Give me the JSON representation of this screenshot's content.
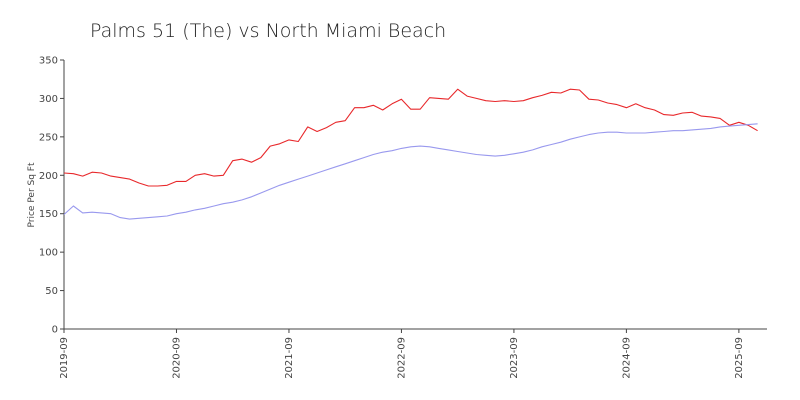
{
  "chart_data": {
    "type": "line",
    "title": "Palms 51 (The) vs North Miami Beach",
    "xlabel": "",
    "ylabel": "Price Per Sq Ft",
    "ylim": [
      0,
      350
    ],
    "yticks": [
      0,
      50,
      100,
      150,
      200,
      250,
      300,
      350
    ],
    "xlim": [
      "2019-09",
      "2025-12"
    ],
    "xticks": [
      "2019-09",
      "2020-09",
      "2021-09",
      "2022-09",
      "2023-09",
      "2024-09",
      "2025-09"
    ],
    "grid": false,
    "legend": "none",
    "start_month": "2019-09",
    "series": [
      {
        "color": "#e8282b",
        "values": [
          203,
          202,
          199,
          204,
          203,
          199,
          197,
          195,
          190,
          186,
          186,
          187,
          192,
          192,
          200,
          202,
          199,
          200,
          219,
          221,
          217,
          223,
          238,
          241,
          246,
          244,
          263,
          257,
          262,
          269,
          271,
          288,
          288,
          291,
          285,
          293,
          299,
          286,
          286,
          301,
          300,
          299,
          312,
          303,
          300,
          297,
          296,
          297,
          296,
          297,
          301,
          304,
          308,
          307,
          312,
          311,
          299,
          298,
          294,
          292,
          288,
          293,
          288,
          285,
          279,
          278,
          281,
          282,
          277,
          276,
          274,
          265,
          269,
          265,
          258
        ]
      },
      {
        "color": "#9999ee",
        "values": [
          149,
          160,
          151,
          152,
          151,
          150,
          145,
          143,
          144,
          145,
          146,
          147,
          150,
          152,
          155,
          157,
          160,
          163,
          165,
          168,
          172,
          177,
          182,
          187,
          191,
          195,
          199,
          203,
          207,
          211,
          215,
          219,
          223,
          227,
          230,
          232,
          235,
          237,
          238,
          237,
          235,
          233,
          231,
          229,
          227,
          226,
          225,
          226,
          228,
          230,
          233,
          237,
          240,
          243,
          247,
          250,
          253,
          255,
          256,
          256,
          255,
          255,
          255,
          256,
          257,
          258,
          258,
          259,
          260,
          261,
          263,
          264,
          265,
          266,
          267
        ]
      }
    ]
  }
}
